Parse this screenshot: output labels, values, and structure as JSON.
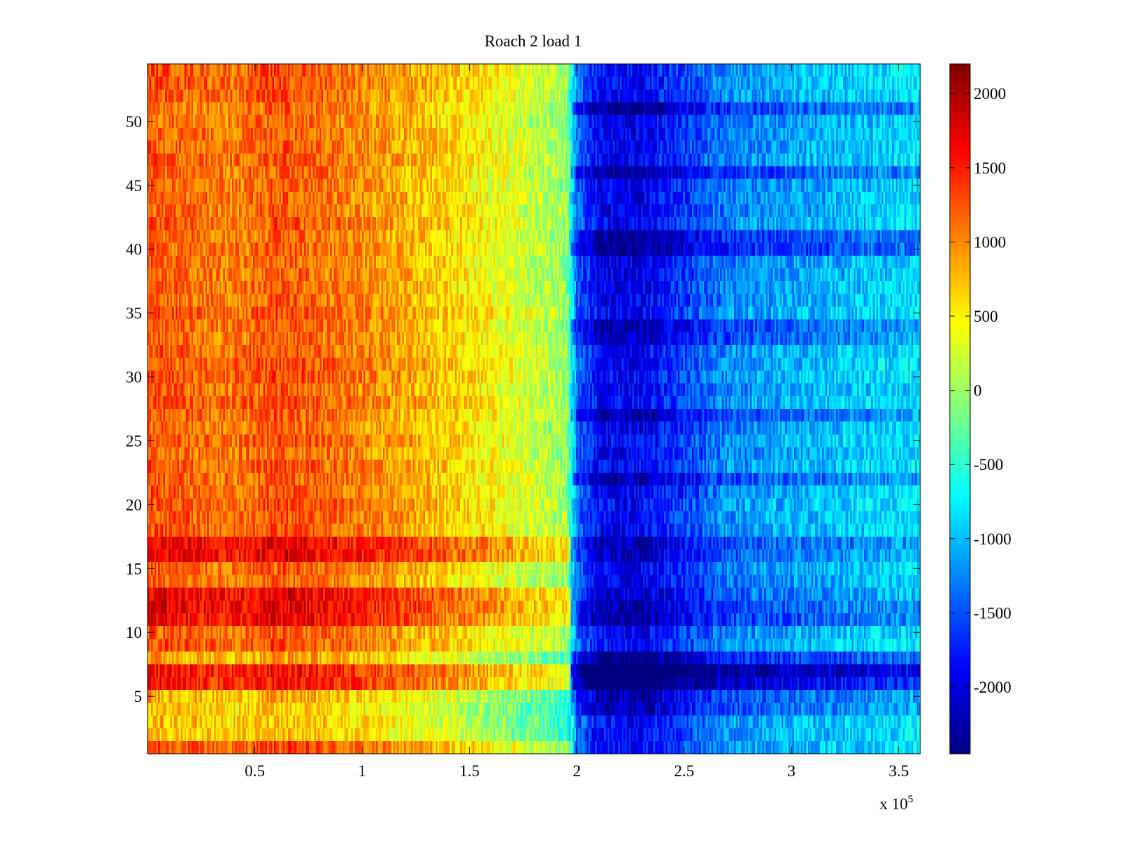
{
  "chart_data": {
    "type": "heatmap",
    "title": "Roach 2 load 1",
    "xlabel": "",
    "ylabel": "",
    "x_exponent_label": "x 10",
    "x_exponent_power": "5",
    "x_range": [
      0.0,
      3.6
    ],
    "y_range": [
      0.5,
      54.5
    ],
    "x_ticks": [
      0.5,
      1,
      1.5,
      2,
      2.5,
      3,
      3.5
    ],
    "x_tick_labels": [
      "0.5",
      "1",
      "1.5",
      "2",
      "2.5",
      "3",
      "3.5"
    ],
    "y_ticks": [
      5,
      10,
      15,
      20,
      25,
      30,
      35,
      40,
      45,
      50
    ],
    "y_tick_labels": [
      "5",
      "10",
      "15",
      "20",
      "25",
      "30",
      "35",
      "40",
      "45",
      "50"
    ],
    "rows": 54,
    "colormap": "jet",
    "color_range": [
      -2450,
      2200
    ],
    "colorbar_ticks": [
      2000,
      1500,
      1000,
      500,
      0,
      -500,
      -1000,
      -1500,
      -2000
    ],
    "colorbar_tick_labels": [
      "2000",
      "1500",
      "1000",
      "500",
      "0",
      "-500",
      "-1000",
      "-1500",
      "-2000"
    ],
    "column_profile": {
      "x": [
        0.0,
        0.2,
        0.4,
        0.6,
        0.8,
        1.0,
        1.2,
        1.4,
        1.6,
        1.8,
        1.95,
        2.0,
        2.1,
        2.3,
        2.5,
        2.7,
        3.0,
        3.3,
        3.6
      ],
      "value": [
        1250,
        1150,
        1050,
        1250,
        1150,
        1000,
        850,
        650,
        450,
        200,
        0,
        -1350,
        -1900,
        -1950,
        -1600,
        -1250,
        -1100,
        -950,
        -850
      ]
    },
    "row_offsets": [
      {
        "row": 2,
        "left_offset": -500,
        "right_offset": 0
      },
      {
        "row": 3,
        "left_offset": -500,
        "right_offset": 0
      },
      {
        "row": 4,
        "left_offset": -450,
        "right_offset": -200
      },
      {
        "row": 5,
        "left_offset": -400,
        "right_offset": -300
      },
      {
        "row": 6,
        "left_offset": 250,
        "right_offset": -900
      },
      {
        "row": 7,
        "left_offset": 300,
        "right_offset": -1100
      },
      {
        "row": 8,
        "left_offset": -300,
        "right_offset": -500
      },
      {
        "row": 11,
        "left_offset": 400,
        "right_offset": -400
      },
      {
        "row": 12,
        "left_offset": 550,
        "right_offset": -300
      },
      {
        "row": 13,
        "left_offset": 450,
        "right_offset": -200
      },
      {
        "row": 16,
        "left_offset": 450,
        "right_offset": -300
      },
      {
        "row": 17,
        "left_offset": 500,
        "right_offset": -300
      },
      {
        "row": 22,
        "left_offset": 0,
        "right_offset": -300
      },
      {
        "row": 27,
        "left_offset": 0,
        "right_offset": -300
      },
      {
        "row": 33,
        "left_offset": 0,
        "right_offset": -250
      },
      {
        "row": 34,
        "left_offset": 0,
        "right_offset": -300
      },
      {
        "row": 40,
        "left_offset": 0,
        "right_offset": -450
      },
      {
        "row": 41,
        "left_offset": 0,
        "right_offset": -350
      },
      {
        "row": 46,
        "left_offset": 0,
        "right_offset": -350
      },
      {
        "row": 51,
        "left_offset": 0,
        "right_offset": -350
      }
    ],
    "noise_amplitude": 350
  }
}
